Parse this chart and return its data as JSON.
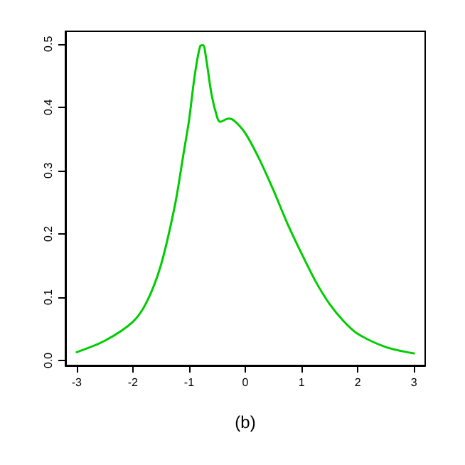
{
  "chart_data": {
    "type": "line",
    "xlabel": "(b)",
    "x": [
      -3,
      -2.5,
      -2,
      -1.75,
      -1.5,
      -1.25,
      -1.1,
      -1,
      -0.9,
      -0.8,
      -0.75,
      -0.7,
      -0.6,
      -0.5,
      -0.45,
      -0.3,
      -0.2,
      0,
      0.25,
      0.5,
      0.75,
      1,
      1.25,
      1.5,
      1.75,
      2,
      2.5,
      3
    ],
    "series": [
      {
        "color": "#00cd00",
        "values": [
          0.013,
          0.031,
          0.061,
          0.093,
          0.151,
          0.246,
          0.326,
          0.38,
          0.45,
          0.497,
          0.498,
          0.479,
          0.42,
          0.384,
          0.377,
          0.382,
          0.379,
          0.359,
          0.318,
          0.269,
          0.216,
          0.169,
          0.125,
          0.089,
          0.062,
          0.042,
          0.021,
          0.011
        ]
      }
    ],
    "xlim": [
      -3.2,
      3.2
    ],
    "xticks": [
      -3,
      -2,
      -1,
      0,
      1,
      2,
      3
    ],
    "ylim": [
      -0.008,
      0.52
    ],
    "yticks": [
      {
        "value": 0,
        "label": "0.0"
      },
      0.1,
      0.2,
      0.3,
      0.4,
      0.5
    ],
    "grid": false,
    "marker": "none",
    "line_style": "solid"
  }
}
